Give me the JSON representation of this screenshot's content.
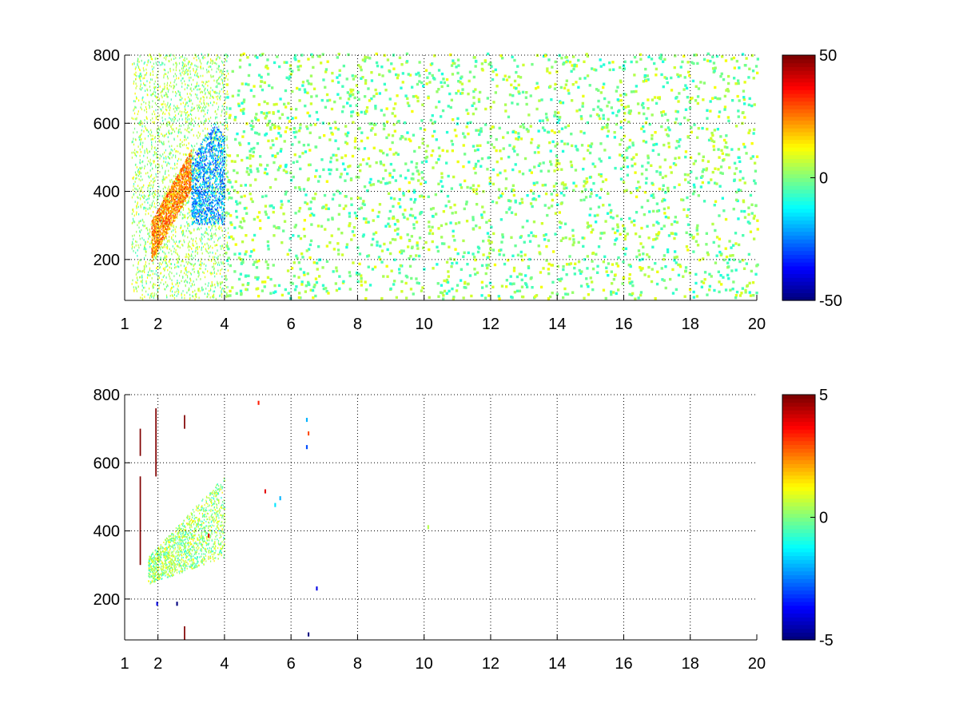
{
  "chart_data": [
    {
      "type": "heatmap",
      "title": "",
      "xlabel": "",
      "ylabel": "",
      "xlim": [
        1,
        20
      ],
      "ylim": [
        80,
        800
      ],
      "x_ticks": [
        "1",
        "2",
        "4",
        "6",
        "8",
        "10",
        "12",
        "14",
        "16",
        "18",
        "20"
      ],
      "x_tick_values": [
        1,
        2,
        4,
        6,
        8,
        10,
        12,
        14,
        16,
        18,
        20
      ],
      "y_ticks": [
        "200",
        "400",
        "600",
        "800"
      ],
      "y_tick_values": [
        200,
        400,
        600,
        800
      ],
      "grid": true,
      "colormap": "jet",
      "colorbar": {
        "range": [
          -50,
          50
        ],
        "ticks": [
          "50",
          "0",
          "-50"
        ],
        "tick_values": [
          50,
          0,
          -50
        ]
      },
      "features": [
        {
          "description": "positive ridge",
          "x": [
            1.8,
            3.0
          ],
          "y": [
            250,
            460
          ],
          "value": 35
        },
        {
          "description": "negative ridge",
          "x": [
            3.0,
            4.0
          ],
          "y": [
            300,
            600
          ],
          "value": -35
        },
        {
          "description": "scattered low-amplitude values",
          "x": [
            4,
            20
          ],
          "y": [
            80,
            800
          ],
          "value_range": [
            -10,
            12
          ]
        }
      ]
    },
    {
      "type": "heatmap",
      "title": "",
      "xlabel": "",
      "ylabel": "",
      "xlim": [
        1,
        20
      ],
      "ylim": [
        80,
        800
      ],
      "x_ticks": [
        "1",
        "2",
        "4",
        "6",
        "8",
        "10",
        "12",
        "14",
        "16",
        "18",
        "20"
      ],
      "x_tick_values": [
        1,
        2,
        4,
        6,
        8,
        10,
        12,
        14,
        16,
        18,
        20
      ],
      "y_ticks": [
        "200",
        "400",
        "600",
        "800"
      ],
      "y_tick_values": [
        200,
        400,
        600,
        800
      ],
      "grid": true,
      "colormap": "jet",
      "colorbar": {
        "range": [
          -5,
          5
        ],
        "ticks": [
          "5",
          "0",
          "-5"
        ],
        "tick_values": [
          5,
          0,
          -5
        ]
      },
      "features": [
        {
          "description": "low-amplitude patch",
          "x": [
            1.7,
            4.0
          ],
          "y": [
            240,
            560
          ],
          "value_range": [
            -1,
            1.5
          ]
        },
        {
          "description": "strong positive streaks",
          "x": [
            1.45,
            1.95
          ],
          "y": [
            300,
            760
          ],
          "value": 5
        },
        {
          "description": "isolated outliers",
          "x": [
            5.0,
            6.8
          ],
          "y": [
            90,
            780
          ],
          "value_range": [
            -5,
            4
          ]
        }
      ]
    }
  ]
}
